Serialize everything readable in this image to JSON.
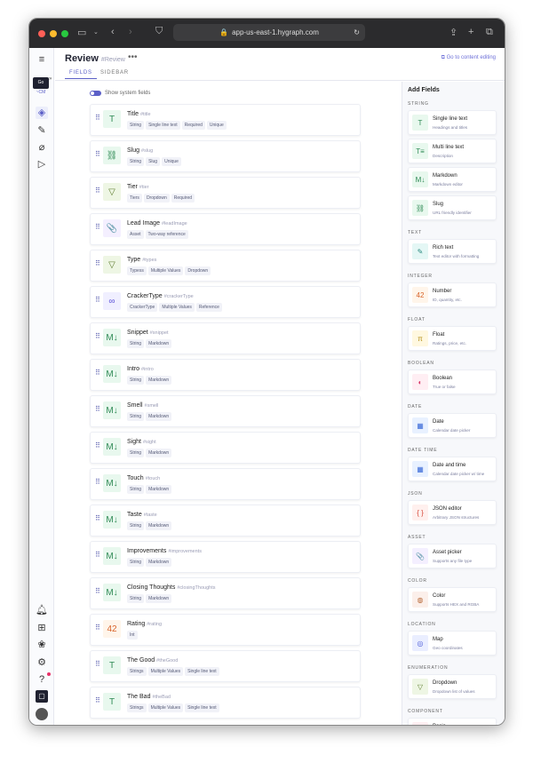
{
  "browser": {
    "url": "app-us-east-1.hygraph.com"
  },
  "rail": {
    "env_badge": "Go",
    "env_sub": "~CM"
  },
  "header": {
    "title": "Review",
    "api_id": "#Review",
    "more": "•••",
    "goto": "Go to content editing",
    "tabs": [
      "FIELDS",
      "SIDEBAR"
    ]
  },
  "toggle_label": "Show system fields",
  "fields": [
    {
      "name": "Title",
      "id": "#title",
      "icon": "T",
      "kind": "text",
      "tags": [
        "String",
        "Single line text",
        "Required",
        "Unique"
      ]
    },
    {
      "name": "Slug",
      "id": "#slug",
      "icon": "⛓",
      "kind": "slug",
      "tags": [
        "String",
        "Slug",
        "Unique"
      ]
    },
    {
      "name": "Tier",
      "id": "#tier",
      "icon": "▽",
      "kind": "enum",
      "tags": [
        "Tiers",
        "Dropdown",
        "Required"
      ]
    },
    {
      "name": "Lead Image",
      "id": "#leadImage",
      "icon": "📎",
      "kind": "asset",
      "tags": [
        "Asset",
        "Two-way reference"
      ]
    },
    {
      "name": "Type",
      "id": "#types",
      "icon": "▽",
      "kind": "enum",
      "tags": [
        "Typess",
        "Multiple Values",
        "Dropdown"
      ]
    },
    {
      "name": "CrackerType",
      "id": "#crackerType",
      "icon": "∞",
      "kind": "ref",
      "tags": [
        "CrackerType",
        "Multiple Values",
        "Reference"
      ]
    },
    {
      "name": "Snippet",
      "id": "#snippet",
      "icon": "M↓",
      "kind": "md",
      "tags": [
        "String",
        "Markdown"
      ]
    },
    {
      "name": "Intro",
      "id": "#intro",
      "icon": "M↓",
      "kind": "md",
      "tags": [
        "String",
        "Markdown"
      ]
    },
    {
      "name": "Smell",
      "id": "#smell",
      "icon": "M↓",
      "kind": "md",
      "tags": [
        "String",
        "Markdown"
      ]
    },
    {
      "name": "Sight",
      "id": "#sight",
      "icon": "M↓",
      "kind": "md",
      "tags": [
        "String",
        "Markdown"
      ]
    },
    {
      "name": "Touch",
      "id": "#touch",
      "icon": "M↓",
      "kind": "md",
      "tags": [
        "String",
        "Markdown"
      ]
    },
    {
      "name": "Taste",
      "id": "#taste",
      "icon": "M↓",
      "kind": "md",
      "tags": [
        "String",
        "Markdown"
      ]
    },
    {
      "name": "Improvements",
      "id": "#improvements",
      "icon": "M↓",
      "kind": "md",
      "tags": [
        "String",
        "Markdown"
      ]
    },
    {
      "name": "Closing Thoughts",
      "id": "#closingThoughts",
      "icon": "M↓",
      "kind": "md",
      "tags": [
        "String",
        "Markdown"
      ]
    },
    {
      "name": "Rating",
      "id": "#rating",
      "icon": "42",
      "kind": "int",
      "tags": [
        "Int"
      ]
    },
    {
      "name": "The Good",
      "id": "#theGood",
      "icon": "T",
      "kind": "text",
      "tags": [
        "Strings",
        "Multiple Values",
        "Single line text"
      ]
    },
    {
      "name": "The Bad",
      "id": "#theBad",
      "icon": "T",
      "kind": "text",
      "tags": [
        "Strings",
        "Multiple Values",
        "Single line text"
      ]
    }
  ],
  "add_fields": {
    "title": "Add Fields",
    "sections": [
      {
        "label": "STRING",
        "items": [
          {
            "t": "Single line text",
            "d": "Headings and titles",
            "icon": "T",
            "kind": "text"
          },
          {
            "t": "Multi line text",
            "d": "Description",
            "icon": "T≡",
            "kind": "text"
          },
          {
            "t": "Markdown",
            "d": "Markdown editor",
            "icon": "M↓",
            "kind": "md"
          },
          {
            "t": "Slug",
            "d": "URL friendly identifier",
            "icon": "⛓",
            "kind": "slug"
          }
        ]
      },
      {
        "label": "TEXT",
        "items": [
          {
            "t": "Rich text",
            "d": "Text editor with formatting",
            "icon": "✎",
            "kind": "rich"
          }
        ]
      },
      {
        "label": "INTEGER",
        "items": [
          {
            "t": "Number",
            "d": "ID, quantity, etc.",
            "icon": "42",
            "kind": "int"
          }
        ]
      },
      {
        "label": "FLOAT",
        "items": [
          {
            "t": "Float",
            "d": "Ratings, price, etc.",
            "icon": "π",
            "kind": "float"
          }
        ]
      },
      {
        "label": "BOOLEAN",
        "items": [
          {
            "t": "Boolean",
            "d": "True or false",
            "icon": "◐",
            "kind": "bool"
          }
        ]
      },
      {
        "label": "DATE",
        "items": [
          {
            "t": "Date",
            "d": "Calendar date picker",
            "icon": "▦",
            "kind": "date"
          }
        ]
      },
      {
        "label": "DATE TIME",
        "items": [
          {
            "t": "Date and time",
            "d": "Calendar date picker w/ time",
            "icon": "▦",
            "kind": "date"
          }
        ]
      },
      {
        "label": "JSON",
        "items": [
          {
            "t": "JSON editor",
            "d": "Arbitrary JSON structures",
            "icon": "{ }",
            "kind": "json"
          }
        ]
      },
      {
        "label": "ASSET",
        "items": [
          {
            "t": "Asset picker",
            "d": "Supports any file type",
            "icon": "📎",
            "kind": "asset"
          }
        ]
      },
      {
        "label": "COLOR",
        "items": [
          {
            "t": "Color",
            "d": "Supports HEX and RGBA",
            "icon": "◍",
            "kind": "color"
          }
        ]
      },
      {
        "label": "LOCATION",
        "items": [
          {
            "t": "Map",
            "d": "Geo coordinates",
            "icon": "◎",
            "kind": "map"
          }
        ]
      },
      {
        "label": "ENUMERATION",
        "items": [
          {
            "t": "Dropdown",
            "d": "Dropdown list of values",
            "icon": "▽",
            "kind": "enum"
          }
        ]
      },
      {
        "label": "COMPONENT",
        "items": [
          {
            "t": "Basic",
            "d": "",
            "icon": "◇",
            "kind": "comp"
          }
        ]
      }
    ]
  },
  "colors": {
    "accent": "#5b5fc7",
    "text": [
      "#e8f8ee",
      "#2f8a55"
    ],
    "slug": [
      "#e8f8ee",
      "#2f8a55"
    ],
    "md": [
      "#e8f8ee",
      "#2f8a55"
    ],
    "enum": [
      "#eef6e4",
      "#5a7a2a"
    ],
    "asset": [
      "#f4efff",
      "#7b4fd8"
    ],
    "ref": [
      "#f0efff",
      "#5a4fd8"
    ],
    "int": [
      "#fff5ea",
      "#d8642a"
    ],
    "rich": [
      "#e4f7f5",
      "#2a8a80"
    ],
    "float": [
      "#fff8e0",
      "#b08a10"
    ],
    "bool": [
      "#ffeef3",
      "#d83a6a"
    ],
    "date": [
      "#e8f1ff",
      "#3a6ad8"
    ],
    "json": [
      "#fff0ee",
      "#d84a3a"
    ],
    "color": [
      "#fbefea",
      "#b86a3a"
    ],
    "map": [
      "#eaeeff",
      "#4a5ad8"
    ],
    "comp": [
      "#ffeef1",
      "#e04a6a"
    ]
  }
}
